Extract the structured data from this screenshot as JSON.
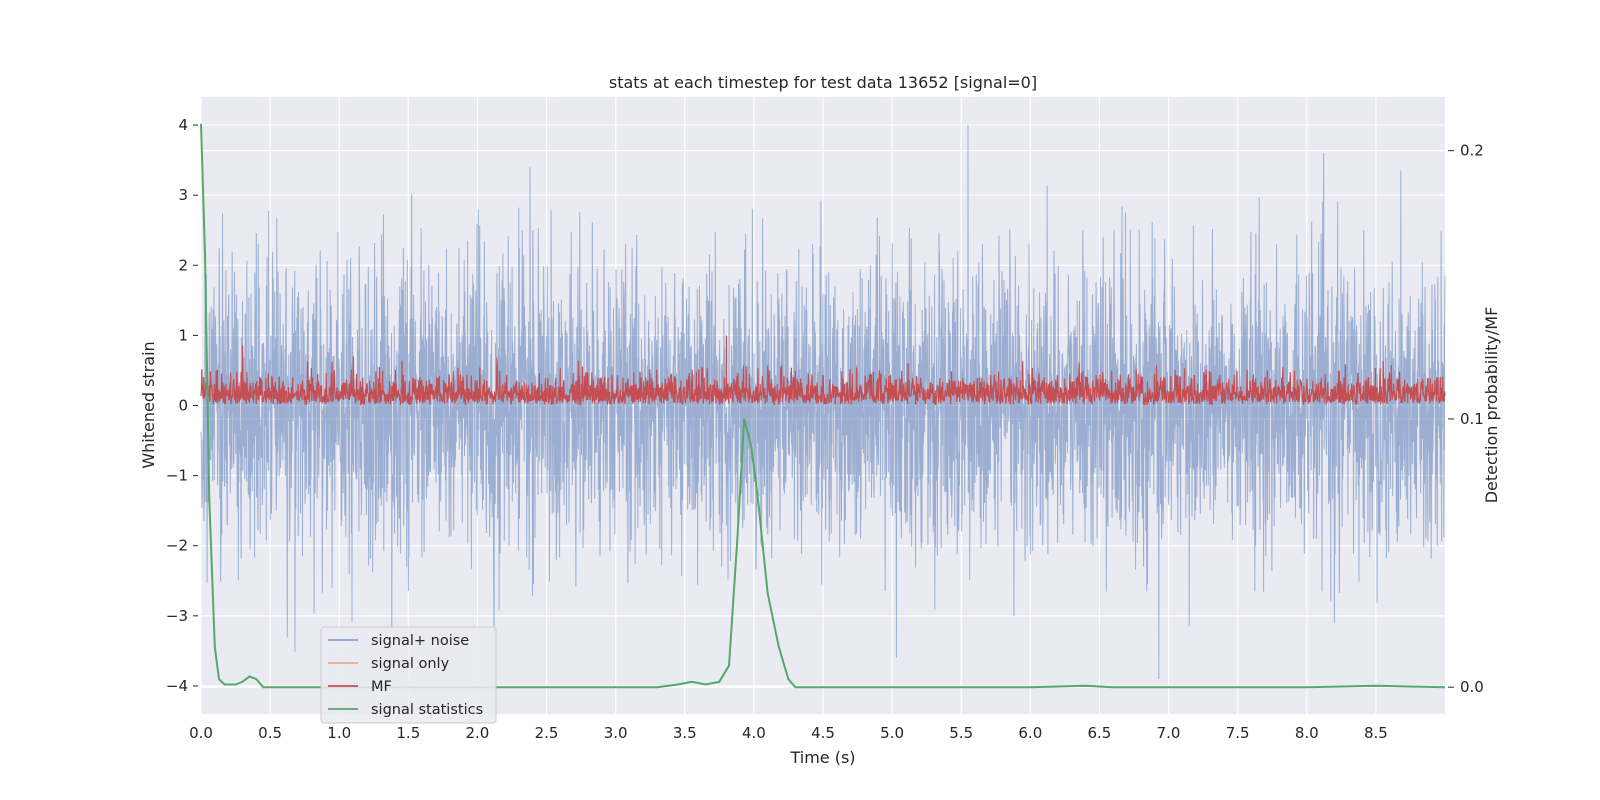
{
  "chart_data": {
    "type": "line",
    "title": "stats at each timestep for test data 13652 [signal=0]",
    "xlabel": "Time (s)",
    "ylabel": "Whitened strain",
    "y2label": "Detection probability/MF",
    "xlim": [
      0.0,
      9.0
    ],
    "ylim": [
      -4.4,
      4.4
    ],
    "y2lim": [
      -0.01,
      0.22
    ],
    "xticks": [
      "0.0",
      "0.5",
      "1.0",
      "1.5",
      "2.0",
      "2.5",
      "3.0",
      "3.5",
      "4.0",
      "4.5",
      "5.0",
      "5.5",
      "6.0",
      "6.5",
      "7.0",
      "7.5",
      "8.0",
      "8.5"
    ],
    "yticks": [
      "4",
      "3",
      "2",
      "1",
      "0",
      "−1",
      "−2",
      "−3",
      "−4"
    ],
    "y2ticks": [
      "0.2",
      "0.1",
      "0.0"
    ],
    "grid": true,
    "legend_position": "lower-left",
    "series": [
      {
        "name": "signal+ noise",
        "color": "#4c72b0",
        "axis": "left",
        "x_range": [
          0.0,
          9.0
        ],
        "envelope_std": 1.0,
        "peaks": [
          {
            "x": 1.38,
            "y": -3.2
          },
          {
            "x": 2.12,
            "y": -3.25
          },
          {
            "x": 2.38,
            "y": 3.4
          },
          {
            "x": 5.55,
            "y": 4.0
          },
          {
            "x": 6.93,
            "y": -3.9
          },
          {
            "x": 7.15,
            "y": -3.15
          },
          {
            "x": 8.2,
            "y": -3.1
          },
          {
            "x": 8.68,
            "y": 3.35
          }
        ]
      },
      {
        "name": "signal only",
        "color": "#dd8452",
        "axis": "left",
        "values": "0 throughout"
      },
      {
        "name": "MF",
        "color": "#c44e52",
        "axis": "left",
        "x_range": [
          0.0,
          9.0
        ],
        "baseline": 0.25,
        "peaks": [
          {
            "x": 0.3,
            "y": 0.85
          },
          {
            "x": 3.8,
            "y": 1.0
          }
        ]
      },
      {
        "name": "signal statistics",
        "color": "#55a868",
        "axis": "right",
        "x": [
          0.0,
          0.03,
          0.06,
          0.1,
          0.13,
          0.17,
          0.2,
          0.25,
          0.3,
          0.35,
          0.4,
          0.45,
          0.5,
          0.55,
          1.0,
          2.0,
          3.0,
          3.3,
          3.45,
          3.55,
          3.65,
          3.75,
          3.82,
          3.88,
          3.93,
          3.98,
          4.03,
          4.1,
          4.18,
          4.25,
          4.3,
          4.4,
          5.0,
          6.0,
          6.4,
          6.6,
          7.0,
          8.0,
          8.5,
          9.0
        ],
        "y": [
          0.21,
          0.16,
          0.07,
          0.015,
          0.003,
          0.001,
          0.001,
          0.001,
          0.002,
          0.004,
          0.003,
          0.0,
          0.0,
          0.0,
          0.0,
          0.0,
          0.0,
          0.0,
          0.001,
          0.002,
          0.001,
          0.002,
          0.008,
          0.055,
          0.1,
          0.09,
          0.07,
          0.035,
          0.015,
          0.003,
          0.0,
          0.0,
          0.0,
          0.0,
          0.0005,
          0.0,
          0.0,
          0.0,
          0.0005,
          0.0
        ]
      }
    ]
  }
}
